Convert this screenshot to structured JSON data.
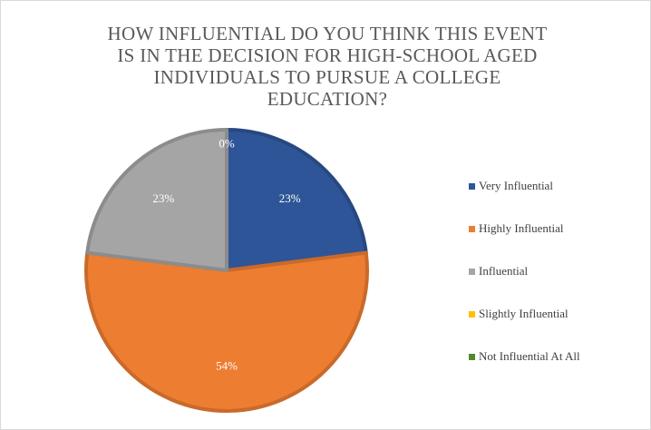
{
  "chart_data": {
    "type": "pie",
    "title_lines": [
      "HOW INFLUENTIAL DO YOU THINK THIS EVENT",
      "IS IN THE DECISION FOR HIGH-SCHOOL AGED",
      "INDIVIDUALS TO PURSUE A COLLEGE",
      "EDUCATION?"
    ],
    "categories": [
      "Very Influential",
      "Highly Influential",
      "Influential",
      "Slightly Influential",
      "Not Influential At All"
    ],
    "values": [
      23,
      54,
      23,
      0,
      0
    ],
    "labels": [
      "23%",
      "54%",
      "23%",
      "0%",
      "0%"
    ],
    "colors": [
      "#2e5597",
      "#ed7d31",
      "#a5a5a5",
      "#ffc000",
      "#4e8a2f"
    ],
    "legend_position": "right"
  }
}
